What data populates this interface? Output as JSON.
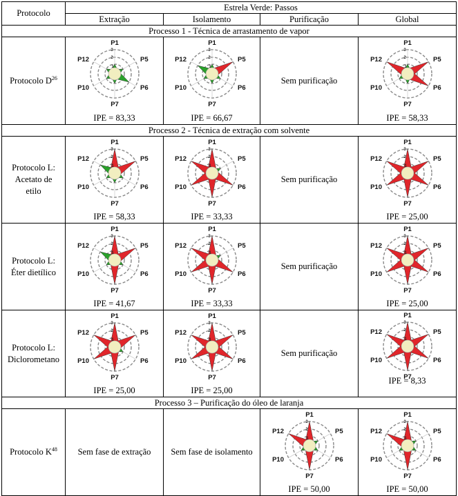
{
  "header": {
    "protocol": "Protocolo",
    "group": "Estrela Verde: Passos",
    "steps": [
      "Extração",
      "Isolamento",
      "Purificação",
      "Global"
    ]
  },
  "star_labels": {
    "p1": "P1",
    "p5": "P5",
    "p6": "P6",
    "p7": "P7",
    "p10": "P10",
    "p12": "P12",
    "t3": "3",
    "t2": "2",
    "t1": "1"
  },
  "colors": {
    "green": "#2aa12a",
    "red": "#e0262b",
    "center": "#f2eec0",
    "ring": "#888888"
  },
  "processes": [
    {
      "title": "Processo 1 - Técnica de arrastamento de vapor"
    },
    {
      "title": "Processo 2 - Técnica de extração com solvente"
    },
    {
      "title": "Processo 3 – Purificação do óleo de laranja"
    }
  ],
  "rows": [
    {
      "label": "Protocolo D",
      "sup": "26",
      "extracao": {
        "ipe": "IPE = 83,33",
        "scores": [
          1,
          1,
          2,
          1,
          1,
          1
        ]
      },
      "isolamento": {
        "ipe": "IPE = 66,67",
        "scores": [
          1,
          3,
          1,
          1,
          1,
          2
        ]
      },
      "purificacao": {
        "text": "Sem purificação"
      },
      "global": {
        "ipe": "IPE = 58,33",
        "scores": [
          1,
          3,
          3,
          1,
          1,
          3
        ]
      }
    },
    {
      "label_lines": [
        "Protocolo L:",
        "Acetato de",
        "etilo"
      ],
      "extracao": {
        "ipe": "IPE = 58,33",
        "scores": [
          3,
          3,
          1,
          1,
          1,
          2
        ]
      },
      "isolamento": {
        "ipe": "IPE = 33,33",
        "scores": [
          3,
          1,
          3,
          3,
          3,
          3
        ]
      },
      "purificacao": {
        "text": "Sem purificação"
      },
      "global": {
        "ipe": "IPE = 25,00",
        "scores": [
          3,
          3,
          3,
          3,
          3,
          3
        ]
      }
    },
    {
      "label_lines": [
        "Protocolo L:",
        "Éter dietílico"
      ],
      "extracao": {
        "ipe": "IPE = 41,67",
        "scores": [
          3,
          3,
          1,
          3,
          1,
          2
        ]
      },
      "isolamento": {
        "ipe": "IPE = 33,33",
        "scores": [
          3,
          1,
          3,
          3,
          3,
          3
        ]
      },
      "purificacao": {
        "text": "Sem purificação"
      },
      "global": {
        "ipe": "IPE = 25,00",
        "scores": [
          3,
          3,
          3,
          3,
          3,
          3
        ]
      }
    },
    {
      "label_lines": [
        "Protocolo L:",
        "Diclorometano"
      ],
      "extracao": {
        "ipe": "IPE = 25,00",
        "scores": [
          3,
          3,
          1,
          3,
          3,
          3
        ]
      },
      "isolamento": {
        "ipe": "IPE = 25,00",
        "scores": [
          3,
          3,
          3,
          3,
          3,
          3
        ]
      },
      "purificacao": {
        "text": "Sem purificação"
      },
      "global": {
        "ipe": "IPE = 8,33",
        "scores": [
          3,
          3,
          3,
          3,
          3,
          3
        ]
      }
    },
    {
      "label": "Protocolo K",
      "sup": "48",
      "extracao": {
        "text": "Sem fase de extração"
      },
      "isolamento": {
        "text": "Sem fase de isolamento"
      },
      "purificacao": {
        "ipe": "IPE = 50,00",
        "scores": [
          3,
          1,
          1,
          3,
          1,
          3
        ]
      },
      "global": {
        "ipe": "IPE = 50,00",
        "scores": [
          3,
          1,
          1,
          3,
          1,
          3
        ]
      }
    }
  ]
}
